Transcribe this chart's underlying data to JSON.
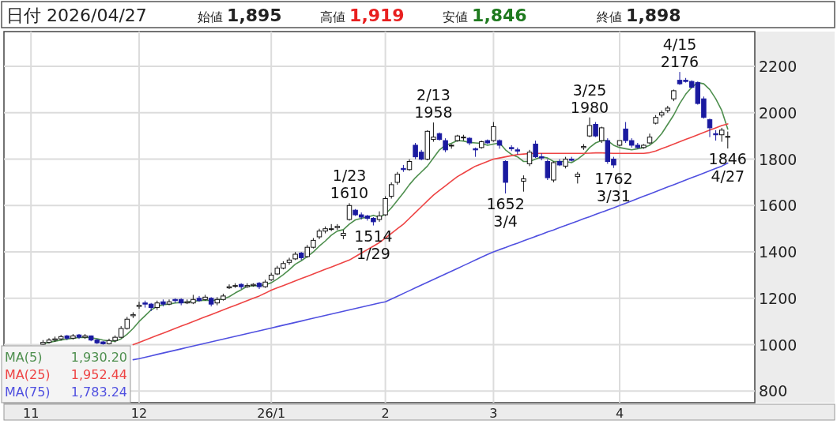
{
  "chart_data": {
    "type": "candlestick",
    "title": "日付 2026/04/27",
    "annotations": [
      "始値 **1,895**",
      "高値 **1,919**",
      "安値 **1,846**",
      "終値 **1,898**",
      "1,930.20",
      "1,952.44",
      "1,783.24",
      {
        "text": "1/23",
        "y": 1610
      },
      {
        "text": "1610",
        "y": 1610
      },
      {
        "text": "1514",
        "y": 1514
      },
      {
        "text": "1/29",
        "y": 1514
      },
      {
        "text": "2/13",
        "y": 1958
      },
      {
        "text": "1958",
        "y": 1958
      },
      {
        "text": "1652",
        "y": 1652
      },
      {
        "text": "3/4",
        "y": 1652
      },
      {
        "text": "3/25",
        "y": 1980
      },
      {
        "text": "1980",
        "y": 1980
      },
      {
        "text": "1762",
        "y": 1762
      },
      {
        "text": "3/31",
        "y": 1762
      },
      {
        "text": "4/15",
        "y": 2176
      },
      {
        "text": "2176",
        "y": 2176
      },
      {
        "text": "1846",
        "y": 1846
      },
      {
        "text": "4/27",
        "y": 1846
      }
    ],
    "categories": [
      "11",
      null,
      null,
      null,
      null,
      null,
      null,
      null,
      null,
      null,
      null,
      null,
      null,
      null,
      null,
      null,
      null,
      null,
      "12",
      null,
      null,
      null,
      null,
      null,
      null,
      null,
      null,
      null,
      null,
      null,
      null,
      null,
      null,
      null,
      null,
      null,
      null,
      null,
      null,
      null,
      "26/1",
      null,
      null,
      null,
      null,
      null,
      null,
      null,
      null,
      null,
      null,
      null,
      null,
      null,
      null,
      null,
      null,
      null,
      null,
      "2",
      null,
      null,
      null,
      null,
      null,
      null,
      null,
      null,
      null,
      null,
      null,
      null,
      null,
      null,
      null,
      null,
      null,
      "3",
      null,
      null,
      null,
      null,
      null,
      null,
      null,
      null,
      null,
      null,
      null,
      null,
      null,
      null,
      null,
      null,
      null,
      null,
      null,
      null,
      "4",
      null,
      null,
      null,
      null,
      null,
      null,
      null,
      null,
      null,
      null,
      null,
      null,
      null,
      null,
      null,
      null,
      null,
      null
    ],
    "ohlc": [
      null,
      null,
      [
        1002,
        1020,
        1000,
        1010
      ],
      [
        1010,
        1028,
        1005,
        1020
      ],
      [
        1020,
        1035,
        1012,
        1025
      ],
      [
        1025,
        1042,
        1018,
        1035
      ],
      [
        1038,
        1042,
        1020,
        1028
      ],
      [
        1028,
        1046,
        1022,
        1038
      ],
      [
        1042,
        1046,
        1025,
        1032
      ],
      [
        1032,
        1046,
        1025,
        1038
      ],
      [
        1038,
        1040,
        1015,
        1020
      ],
      [
        1020,
        1025,
        1003,
        1008
      ],
      [
        1012,
        1016,
        1000,
        1004
      ],
      [
        1004,
        1026,
        1001,
        1018
      ],
      [
        1018,
        1040,
        1010,
        1032
      ],
      [
        1032,
        1080,
        1028,
        1070
      ],
      [
        1070,
        1120,
        1065,
        1110
      ],
      [
        1125,
        1140,
        1115,
        1130
      ],
      [
        1165,
        1185,
        1155,
        1170
      ],
      [
        1180,
        1190,
        1160,
        1175
      ],
      [
        1175,
        1180,
        1145,
        1160
      ],
      [
        1160,
        1190,
        1150,
        1180
      ],
      [
        1185,
        1195,
        1165,
        1175
      ],
      [
        1175,
        1195,
        1170,
        1185
      ],
      [
        1195,
        1200,
        1180,
        1190
      ],
      [
        1195,
        1200,
        1170,
        1180
      ],
      [
        1180,
        1195,
        1175,
        1185
      ],
      [
        1180,
        1215,
        1175,
        1195
      ],
      [
        1200,
        1210,
        1185,
        1190
      ],
      [
        1195,
        1215,
        1190,
        1205
      ],
      [
        1200,
        1205,
        1165,
        1175
      ],
      [
        1180,
        1205,
        1170,
        1195
      ],
      [
        1195,
        1220,
        1190,
        1210
      ],
      [
        1245,
        1260,
        1240,
        1250
      ],
      [
        1255,
        1265,
        1245,
        1255
      ],
      [
        1260,
        1265,
        1240,
        1250
      ],
      [
        1250,
        1265,
        1245,
        1255
      ],
      [
        1255,
        1265,
        1250,
        1260
      ],
      [
        1265,
        1270,
        1240,
        1250
      ],
      [
        1250,
        1280,
        1245,
        1270
      ],
      [
        1280,
        1310,
        1275,
        1300
      ],
      [
        1305,
        1340,
        1300,
        1330
      ],
      [
        1330,
        1360,
        1325,
        1350
      ],
      [
        1355,
        1375,
        1345,
        1365
      ],
      [
        1370,
        1400,
        1365,
        1390
      ],
      [
        1395,
        1400,
        1365,
        1375
      ],
      [
        1380,
        1430,
        1375,
        1420
      ],
      [
        1420,
        1460,
        1415,
        1450
      ],
      [
        1465,
        1500,
        1455,
        1490
      ],
      [
        1490,
        1510,
        1480,
        1500
      ],
      [
        1500,
        1520,
        1490,
        1500
      ],
      [
        1505,
        1520,
        1495,
        1510
      ],
      [
        1470,
        1495,
        1455,
        1480
      ],
      [
        1540,
        1610,
        1535,
        1600
      ],
      [
        1580,
        1585,
        1555,
        1560
      ],
      [
        1560,
        1570,
        1540,
        1550
      ],
      [
        1555,
        1560,
        1535,
        1545
      ],
      [
        1545,
        1550,
        1514,
        1530
      ],
      [
        1540,
        1575,
        1530,
        1555
      ],
      [
        1560,
        1640,
        1555,
        1630
      ],
      [
        1640,
        1700,
        1630,
        1690
      ],
      [
        1700,
        1745,
        1690,
        1735
      ],
      [
        1760,
        1775,
        1745,
        1755
      ],
      [
        1755,
        1800,
        1750,
        1790
      ],
      [
        1860,
        1870,
        1800,
        1810
      ],
      [
        1830,
        1840,
        1795,
        1800
      ],
      [
        1800,
        1925,
        1795,
        1920
      ],
      [
        1885,
        1958,
        1875,
        1895
      ],
      [
        1910,
        1915,
        1880,
        1885
      ],
      [
        1880,
        1890,
        1830,
        1840
      ],
      [
        1860,
        1865,
        1845,
        1860
      ],
      [
        1880,
        1905,
        1875,
        1900
      ],
      [
        1895,
        1905,
        1880,
        1895
      ],
      [
        1890,
        1895,
        1860,
        1870
      ],
      [
        1845,
        1850,
        1810,
        1840
      ],
      [
        1850,
        1880,
        1845,
        1875
      ],
      [
        1880,
        1885,
        1865,
        1870
      ],
      [
        1880,
        1960,
        1875,
        1940
      ],
      [
        1880,
        1885,
        1845,
        1860
      ],
      [
        1790,
        1795,
        1652,
        1700
      ],
      [
        1850,
        1860,
        1835,
        1845
      ],
      [
        1840,
        1850,
        1820,
        1835
      ],
      [
        1705,
        1730,
        1660,
        1715
      ],
      [
        1780,
        1840,
        1770,
        1830
      ],
      [
        1865,
        1880,
        1805,
        1810
      ],
      [
        1810,
        1825,
        1795,
        1805
      ],
      [
        1790,
        1800,
        1710,
        1720
      ],
      [
        1710,
        1790,
        1700,
        1785
      ],
      [
        1790,
        1800,
        1770,
        1775
      ],
      [
        1770,
        1810,
        1760,
        1800
      ],
      [
        1800,
        1810,
        1790,
        1795
      ],
      [
        1725,
        1745,
        1695,
        1735
      ],
      [
        1850,
        1865,
        1840,
        1855
      ],
      [
        1900,
        1980,
        1895,
        1945
      ],
      [
        1950,
        1960,
        1895,
        1900
      ],
      [
        1880,
        1940,
        1870,
        1935
      ],
      [
        1880,
        1890,
        1780,
        1790
      ],
      [
        1800,
        1810,
        1762,
        1775
      ],
      [
        1860,
        1880,
        1855,
        1880
      ],
      [
        1930,
        1960,
        1870,
        1880
      ],
      [
        1880,
        1890,
        1850,
        1860
      ],
      [
        1860,
        1870,
        1845,
        1850
      ],
      [
        1850,
        1865,
        1845,
        1860
      ],
      [
        1870,
        1910,
        1865,
        1895
      ],
      [
        1955,
        1990,
        1950,
        1980
      ],
      [
        1990,
        2010,
        1980,
        2000
      ],
      [
        2010,
        2030,
        2000,
        2020
      ],
      [
        2060,
        2100,
        2050,
        2095
      ],
      [
        2140,
        2176,
        2120,
        2125
      ],
      [
        2140,
        2150,
        2130,
        2135
      ],
      [
        2135,
        2140,
        2105,
        2110
      ],
      [
        2130,
        2135,
        2035,
        2040
      ],
      [
        2060,
        2070,
        1975,
        1980
      ],
      [
        1970,
        1975,
        1895,
        1935
      ],
      [
        1910,
        1925,
        1880,
        1905
      ],
      [
        1905,
        1935,
        1875,
        1925
      ],
      [
        1895,
        1919,
        1846,
        1898
      ]
    ],
    "series": [
      {
        "name": "MA(5)",
        "type": "line",
        "color": "#4e8f4e",
        "values": [
          null,
          null,
          1005,
          1010,
          1015,
          1020,
          1024,
          1028,
          1031,
          1032,
          1030,
          1026,
          1020,
          1016,
          1015,
          1025,
          1045,
          1070,
          1100,
          1125,
          1150,
          1165,
          1172,
          1175,
          1180,
          1182,
          1184,
          1187,
          1190,
          1192,
          1190,
          1193,
          1197,
          1207,
          1223,
          1237,
          1252,
          1254,
          1255,
          1258,
          1267,
          1283,
          1302,
          1323,
          1347,
          1362,
          1380,
          1400,
          1425,
          1447,
          1472,
          1490,
          1496,
          1520,
          1538,
          1545,
          1550,
          1558,
          1550,
          1563,
          1590,
          1622,
          1655,
          1690,
          1720,
          1745,
          1770,
          1805,
          1840,
          1860,
          1868,
          1880,
          1878,
          1872,
          1870,
          1868,
          1860,
          1865,
          1870,
          1840,
          1820,
          1810,
          1790,
          1790,
          1800,
          1810,
          1805,
          1790,
          1790,
          1790,
          1785,
          1800,
          1820,
          1850,
          1870,
          1880,
          1880,
          1860,
          1850,
          1845,
          1840,
          1845,
          1850,
          1860,
          1880,
          1910,
          1950,
          1990,
          2040,
          2080,
          2110,
          2130,
          2125,
          2100,
          2060,
          2010,
          1930
        ]
      },
      {
        "name": "MA(25)",
        "type": "line",
        "color": "#ee4444",
        "values": [
          null,
          null,
          null,
          null,
          null,
          null,
          null,
          null,
          null,
          null,
          null,
          null,
          null,
          null,
          null,
          null,
          null,
          1000,
          1010,
          1020,
          1030,
          1040,
          1050,
          1060,
          1070,
          1080,
          1090,
          1100,
          1110,
          1120,
          1130,
          1140,
          1150,
          1160,
          1170,
          1180,
          1190,
          1200,
          1210,
          1222,
          1235,
          1245,
          1255,
          1265,
          1275,
          1285,
          1295,
          1305,
          1315,
          1325,
          1335,
          1345,
          1355,
          1365,
          1380,
          1395,
          1410,
          1425,
          1440,
          1460,
          1480,
          1500,
          1520,
          1545,
          1570,
          1595,
          1620,
          1645,
          1665,
          1685,
          1705,
          1725,
          1740,
          1755,
          1770,
          1780,
          1790,
          1800,
          1805,
          1810,
          1815,
          1820,
          1822,
          1824,
          1825,
          1825,
          1825,
          1825,
          1825,
          1825,
          1825,
          1825,
          1825,
          1826,
          1827,
          1827,
          1826,
          1825,
          1825,
          1825,
          1825,
          1825,
          1825,
          1828,
          1835,
          1845,
          1855,
          1865,
          1875,
          1885,
          1895,
          1905,
          1915,
          1925,
          1935,
          1945,
          1952
        ]
      },
      {
        "name": "MA(75)",
        "type": "line",
        "color": "#5050e0",
        "values": [
          null,
          null,
          null,
          null,
          null,
          null,
          null,
          null,
          null,
          null,
          null,
          null,
          null,
          null,
          null,
          null,
          null,
          935,
          940,
          946,
          952,
          958,
          964,
          970,
          976,
          982,
          988,
          994,
          1000,
          1006,
          1012,
          1018,
          1024,
          1030,
          1036,
          1042,
          1048,
          1054,
          1060,
          1066,
          1072,
          1078,
          1084,
          1090,
          1096,
          1102,
          1108,
          1114,
          1120,
          1126,
          1132,
          1138,
          1144,
          1150,
          1156,
          1162,
          1168,
          1174,
          1180,
          1185,
          1197,
          1209,
          1221,
          1233,
          1245,
          1257,
          1269,
          1281,
          1293,
          1305,
          1317,
          1329,
          1341,
          1353,
          1365,
          1377,
          1389,
          1400,
          1410,
          1419,
          1429,
          1438,
          1448,
          1457,
          1467,
          1476,
          1486,
          1495,
          1505,
          1514,
          1524,
          1533,
          1543,
          1552,
          1562,
          1571,
          1581,
          1590,
          1600,
          1610,
          1620,
          1630,
          1640,
          1650,
          1660,
          1670,
          1680,
          1690,
          1700,
          1710,
          1720,
          1730,
          1740,
          1750,
          1760,
          1770,
          1783
        ]
      }
    ],
    "ylim": [
      750,
      2350
    ],
    "yticks": [
      800,
      1000,
      1200,
      1400,
      1600,
      1800,
      2000,
      2200
    ],
    "grid": true,
    "legend": "bottom left"
  }
}
